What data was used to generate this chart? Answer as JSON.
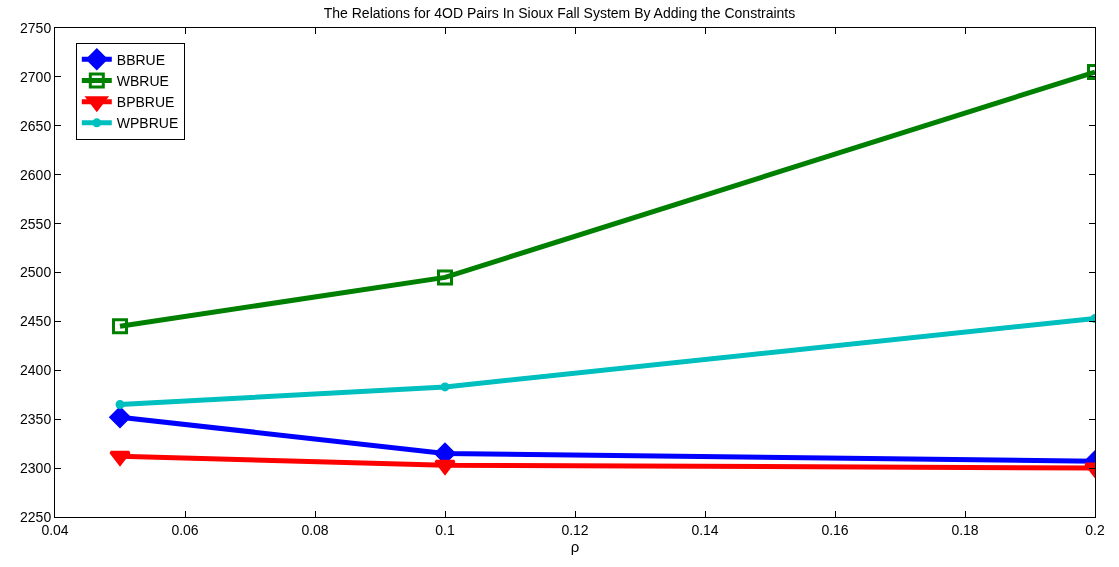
{
  "chart_data": {
    "type": "line",
    "title": "The Relations for 4OD Pairs In Sioux Fall System By Adding the Constraints",
    "xlabel": "ρ",
    "x": [
      0.05,
      0.1,
      0.2
    ],
    "series": [
      {
        "name": "BBRUE",
        "color": "#0000ff",
        "marker": "diamond",
        "values": [
          2352,
          2315,
          2307
        ]
      },
      {
        "name": "WBRUE",
        "color": "#008000",
        "marker": "square",
        "values": [
          2445,
          2495,
          2705
        ]
      },
      {
        "name": "BPBRUE",
        "color": "#ff0000",
        "marker": "triangle-down",
        "values": [
          2312,
          2303,
          2300
        ]
      },
      {
        "name": "WPBRUE",
        "color": "#00bfbf",
        "marker": "circle",
        "values": [
          2365,
          2383,
          2453
        ]
      }
    ],
    "xlim": [
      0.04,
      0.2
    ],
    "xticks": [
      {
        "value": 0.04,
        "label": "0.04"
      },
      {
        "value": 0.06,
        "label": "0.06"
      },
      {
        "value": 0.08,
        "label": "0.08"
      },
      {
        "value": 0.1,
        "label": "0.1"
      },
      {
        "value": 0.12,
        "label": "0.12"
      },
      {
        "value": 0.14,
        "label": "0.14"
      },
      {
        "value": 0.16,
        "label": "0.16"
      },
      {
        "value": 0.18,
        "label": "0.18"
      },
      {
        "value": 0.2,
        "label": "0.2"
      }
    ],
    "ylim": [
      2250,
      2750
    ],
    "yticks": [
      2250,
      2300,
      2350,
      2400,
      2450,
      2500,
      2550,
      2600,
      2650,
      2700,
      2750
    ],
    "grid": false,
    "legend": "top left",
    "line_style": "solid"
  }
}
